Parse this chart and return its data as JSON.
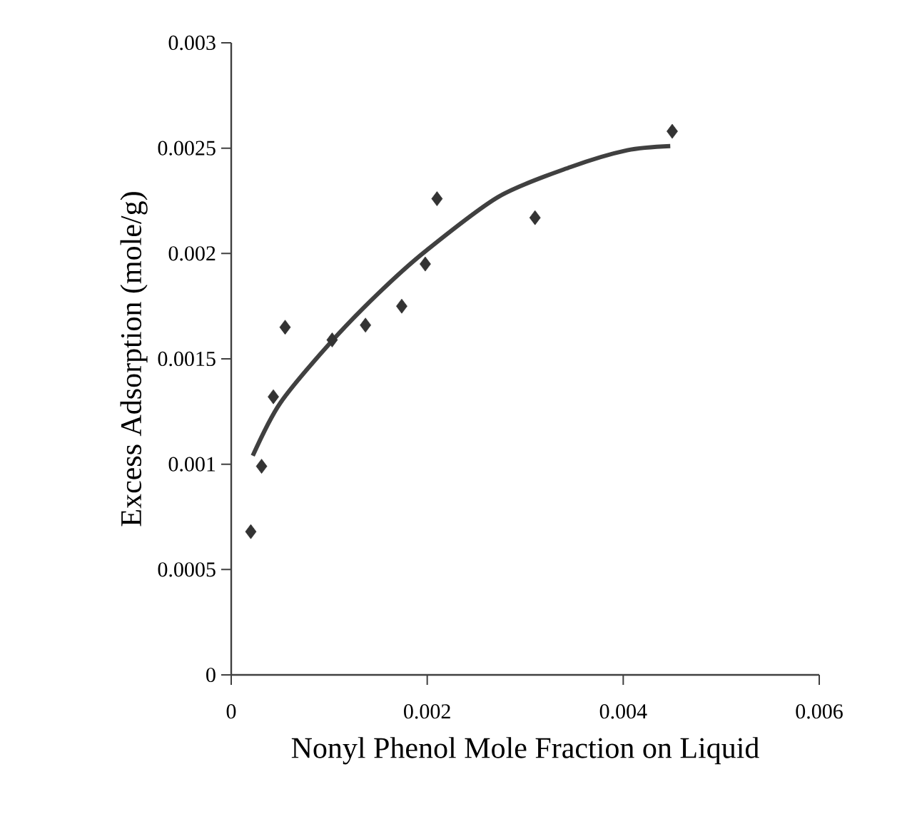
{
  "chart_data": {
    "type": "scatter",
    "xlabel": "Nonyl Phenol Mole Fraction on Liquid",
    "ylabel": "Excess Adsorption (mole/g)",
    "xlim": [
      0,
      0.006
    ],
    "xticks": [
      0,
      0.002,
      0.004,
      0.006
    ],
    "ylim": [
      0,
      0.003
    ],
    "yticks": [
      0,
      0.0005,
      0.001,
      0.0015,
      0.002,
      0.0025,
      0.003
    ],
    "series": [
      {
        "marker": "diamond",
        "color": "#333333",
        "x": [
          0.0002,
          0.00031,
          0.00043,
          0.00055,
          0.00103,
          0.00137,
          0.00174,
          0.00198,
          0.0021,
          0.0031,
          0.0045
        ],
        "values": [
          0.00068,
          0.00099,
          0.00132,
          0.00165,
          0.00159,
          0.00166,
          0.00175,
          0.00195,
          0.00226,
          0.00217,
          0.00258
        ]
      },
      {
        "type": "line",
        "color": "#404040",
        "line_style": "solid",
        "marker": "none",
        "x": [
          0.00022,
          0.0005,
          0.001,
          0.0015,
          0.00198,
          0.00273,
          0.00346,
          0.00404,
          0.00448
        ],
        "values": [
          0.00104,
          0.00129,
          0.00157,
          0.00181,
          0.00201,
          0.00227,
          0.00241,
          0.00249,
          0.00251
        ]
      }
    ]
  }
}
